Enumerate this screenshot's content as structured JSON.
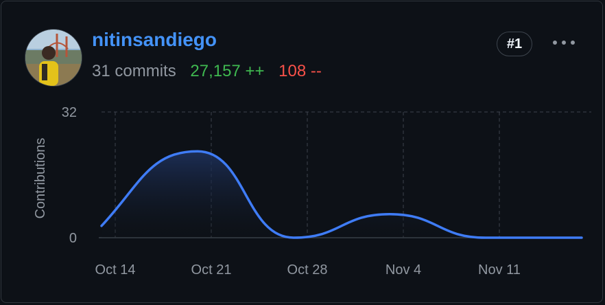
{
  "contributor": {
    "username": "nitinsandiego",
    "commits": "31 commits",
    "additions": "27,157 ++",
    "deletions": "108 --",
    "rank": "#1"
  },
  "icons": {
    "more": "kebab-horizontal-icon"
  },
  "colors": {
    "username": "#4493f8",
    "additions": "#3fb950",
    "deletions": "#f85149",
    "line": "#3f7cf6",
    "background": "#0d1117"
  },
  "chart_data": {
    "type": "area",
    "ylabel": "Contributions",
    "ylim": [
      0,
      32
    ],
    "yticks": [
      "32",
      "0"
    ],
    "x_ticks": [
      "Oct 14",
      "Oct 21",
      "Oct 28",
      "Nov 4",
      "Nov 11"
    ],
    "x_range": [
      "2023-10-13",
      "2023-11-17"
    ],
    "grid": "dashed",
    "series": [
      {
        "points": [
          [
            "2023-10-13",
            3
          ],
          [
            "2023-10-20",
            22
          ],
          [
            "2023-10-27",
            0
          ],
          [
            "2023-11-03",
            6
          ],
          [
            "2023-11-10",
            0
          ],
          [
            "2023-11-17",
            0
          ]
        ]
      }
    ]
  }
}
